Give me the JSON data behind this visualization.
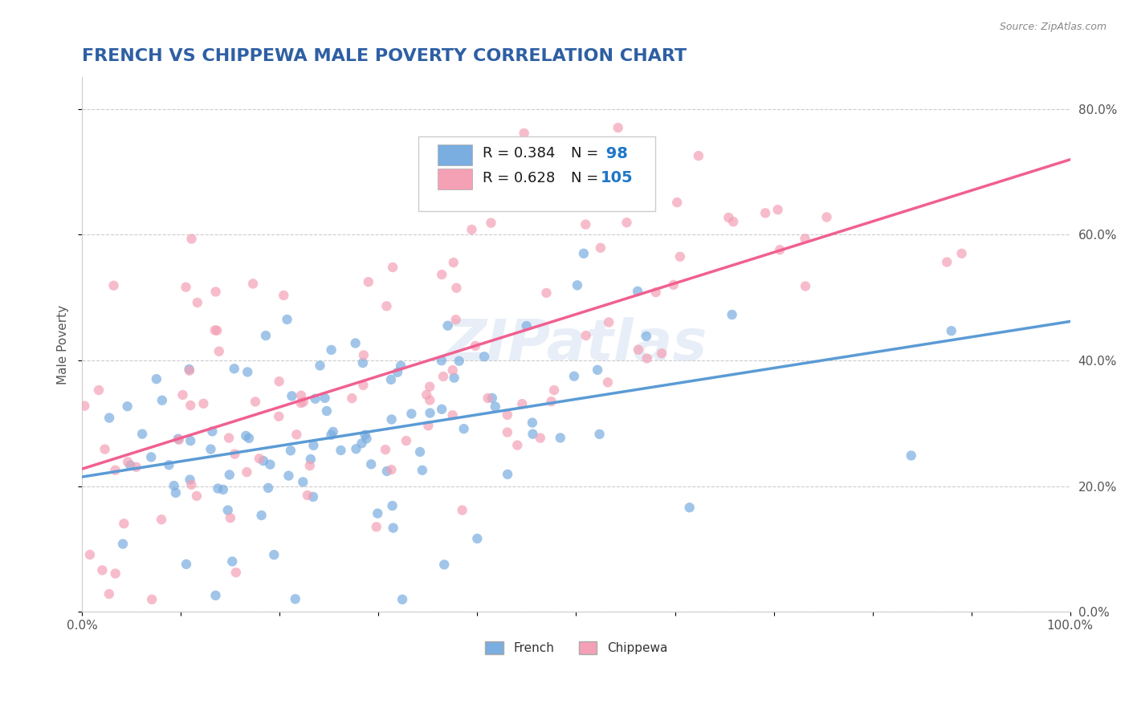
{
  "title": "FRENCH VS CHIPPEWA MALE POVERTY CORRELATION CHART",
  "source": "Source: ZipAtlas.com",
  "ylabel": "Male Poverty",
  "xlabel": "",
  "french_R": 0.384,
  "french_N": 98,
  "chippewa_R": 0.628,
  "chippewa_N": 105,
  "french_color": "#7aade0",
  "chippewa_color": "#f4a0b5",
  "french_line_color": "#5b9bd5",
  "chippewa_line_color": "#f06090",
  "title_color": "#2e5fa3",
  "background_color": "#ffffff",
  "xlim": [
    0.0,
    1.0
  ],
  "ylim": [
    0.0,
    0.85
  ],
  "watermark": "ZIPatlas",
  "legend_R_color": "#1f4e9e",
  "legend_N_color": "#1f77c8"
}
